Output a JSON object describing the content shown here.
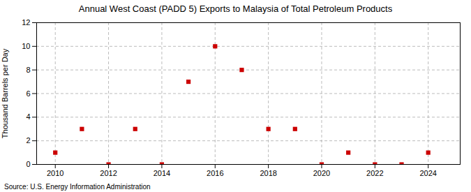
{
  "chart_data": {
    "type": "scatter",
    "title": "Annual West Coast (PADD 5) Exports to Malaysia of Total Petroleum Products",
    "ylabel": "Thousand Barrels per Day",
    "source": "Source: U.S. Energy Information Administration",
    "x": [
      2010,
      2011,
      2012,
      2013,
      2014,
      2015,
      2016,
      2017,
      2018,
      2019,
      2020,
      2021,
      2022,
      2023,
      2024
    ],
    "values": [
      1,
      3,
      0,
      3,
      0,
      7,
      10,
      8,
      3,
      3,
      0,
      1,
      0,
      0,
      1
    ],
    "color": "#cc0000",
    "marker": "square",
    "xlim": [
      2009.3,
      2025.2
    ],
    "xticks": [
      2010,
      2012,
      2014,
      2016,
      2018,
      2020,
      2022,
      2024
    ],
    "ylim": [
      0,
      12
    ],
    "yticks": [
      0,
      2,
      4,
      6,
      8,
      10,
      12
    ],
    "grid": true
  }
}
